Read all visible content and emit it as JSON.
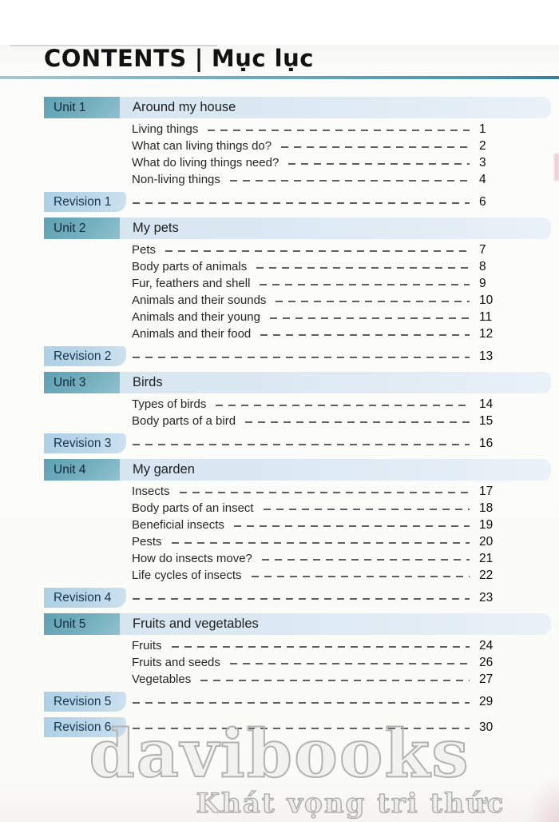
{
  "header": {
    "title_en": "CONTENTS",
    "separator": "|",
    "title_vi": "Mục lục"
  },
  "sections": [
    {
      "kind": "unit",
      "label": "Unit 1",
      "title": "Around my house",
      "items": [
        {
          "label": "Living things",
          "page": "1"
        },
        {
          "label": "What can living things do?",
          "page": "2"
        },
        {
          "label": "What do living things need?",
          "page": "3"
        },
        {
          "label": "Non-living things",
          "page": "4"
        }
      ]
    },
    {
      "kind": "revision",
      "label": "Revision 1",
      "page": "6"
    },
    {
      "kind": "unit",
      "label": "Unit 2",
      "title": "My pets",
      "items": [
        {
          "label": "Pets",
          "page": "7"
        },
        {
          "label": "Body parts of animals",
          "page": "8"
        },
        {
          "label": "Fur, feathers and shell",
          "page": "9"
        },
        {
          "label": "Animals and their sounds",
          "page": "10"
        },
        {
          "label": "Animals and their young",
          "page": "11"
        },
        {
          "label": "Animals and their food",
          "page": "12"
        }
      ]
    },
    {
      "kind": "revision",
      "label": "Revision 2",
      "page": "13"
    },
    {
      "kind": "unit",
      "label": "Unit 3",
      "title": "Birds",
      "items": [
        {
          "label": "Types of birds",
          "page": "14"
        },
        {
          "label": "Body parts of a bird",
          "page": "15"
        }
      ]
    },
    {
      "kind": "revision",
      "label": "Revision 3",
      "page": "16"
    },
    {
      "kind": "unit",
      "label": "Unit 4",
      "title": "My garden",
      "items": [
        {
          "label": "Insects",
          "page": "17"
        },
        {
          "label": "Body parts of an insect",
          "page": "18"
        },
        {
          "label": "Beneficial insects",
          "page": "19"
        },
        {
          "label": "Pests",
          "page": "20"
        },
        {
          "label": "How do insects move?",
          "page": "21"
        },
        {
          "label": "Life cycles of insects",
          "page": "22"
        }
      ]
    },
    {
      "kind": "revision",
      "label": "Revision 4",
      "page": "23"
    },
    {
      "kind": "unit",
      "label": "Unit 5",
      "title": "Fruits and vegetables",
      "items": [
        {
          "label": "Fruits",
          "page": "24"
        },
        {
          "label": "Fruits and seeds",
          "page": "26"
        },
        {
          "label": "Vegetables",
          "page": "27"
        }
      ]
    },
    {
      "kind": "revision",
      "label": "Revision 5",
      "page": "29"
    },
    {
      "kind": "revision",
      "label": "Revision 6",
      "page": "30"
    }
  ],
  "watermark": {
    "line1": "davibooks",
    "line2": "Khát vọng tri thức"
  },
  "colors": {
    "unit_box": "#6aa9b9",
    "unit_bar": "#dce8f2",
    "revision_box": "#b3d3e7",
    "title_rule": "#4d96ac",
    "dash": "#5f5f5f",
    "unit_label_text": "#13293b"
  }
}
